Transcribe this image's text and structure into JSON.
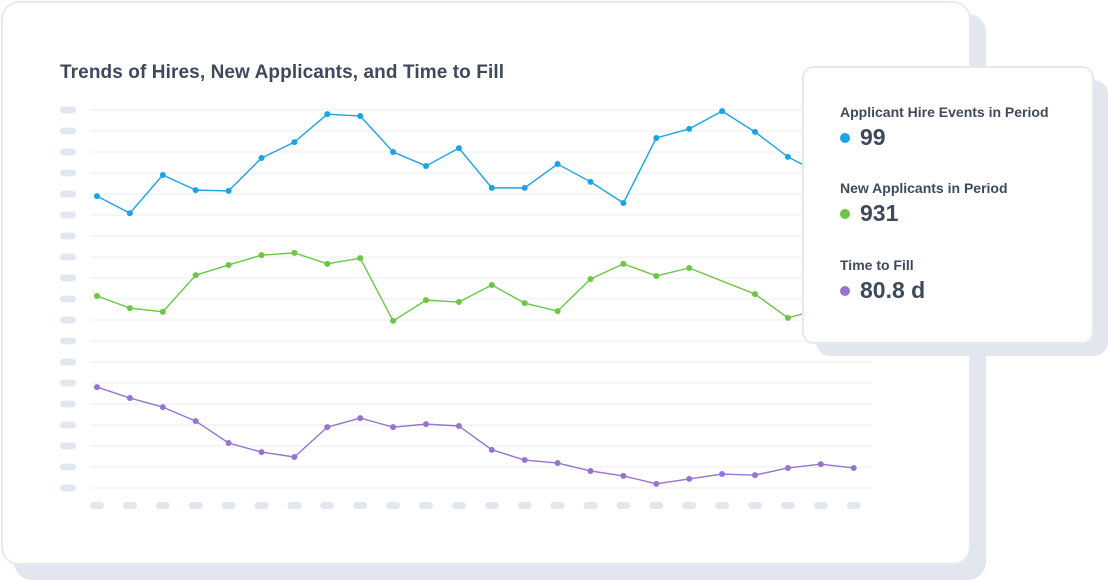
{
  "chart_title": "Trends of Hires, New Applicants, and Time to Fill",
  "tooltip": {
    "metrics": [
      {
        "label": "Applicant Hire Events in Period",
        "value": "99",
        "color": "#1aa3e6"
      },
      {
        "label": "New Applicants in Period",
        "value": "931",
        "color": "#6cc644"
      },
      {
        "label": "Time to Fill",
        "value": "80.8 d",
        "color": "#9575cd"
      }
    ]
  },
  "colors": {
    "hires": "#1aa3e6",
    "applicants": "#6cc644",
    "time_to_fill": "#9575cd",
    "grid": "#edf0f4",
    "placeholder": "#e2e7ef",
    "text": "#3e4a5c"
  },
  "chart_data": {
    "type": "line",
    "title": "Trends of Hires, New Applicants, and Time to Fill",
    "xlabel": "",
    "ylabel": "",
    "x_tick_labels_visible": false,
    "y_tick_labels_visible": false,
    "x_tick_count": 24,
    "y_gridline_count": 19,
    "grid": true,
    "legend_position": "tooltip-right",
    "note": "Axis labels are rendered as blank placeholders; values are relative plot heights (0-100, higher = up) read from pixel positions.",
    "x": [
      1,
      2,
      3,
      4,
      5,
      6,
      7,
      8,
      9,
      10,
      11,
      12,
      13,
      14,
      15,
      16,
      17,
      18,
      19,
      20,
      21,
      22,
      23,
      24
    ],
    "series": [
      {
        "name": "Applicant Hire Events in Period",
        "color": "#1aa3e6",
        "values": [
          77.2,
          72.7,
          82.8,
          78.8,
          78.6,
          87.3,
          91.5,
          98.9,
          98.4,
          88.9,
          85.2,
          89.9,
          79.4,
          79.4,
          85.7,
          81.0,
          75.4,
          92.6,
          95.0,
          99.7,
          94.2,
          87.6,
          83.1,
          null
        ]
      },
      {
        "name": "New Applicants in Period",
        "color": "#6cc644",
        "values": [
          50.8,
          47.6,
          46.6,
          56.3,
          59.0,
          61.6,
          62.2,
          59.3,
          60.8,
          44.2,
          49.7,
          49.2,
          53.7,
          48.9,
          46.8,
          55.3,
          59.3,
          56.1,
          58.2,
          null,
          51.3,
          45.0,
          47.4,
          null
        ]
      },
      {
        "name": "Time to Fill",
        "color": "#9575cd",
        "values": [
          26.7,
          23.8,
          21.4,
          17.7,
          11.9,
          9.5,
          8.2,
          16.1,
          18.5,
          16.1,
          16.9,
          16.4,
          10.1,
          7.4,
          6.6,
          4.5,
          3.2,
          1.1,
          2.4,
          3.7,
          3.4,
          5.3,
          6.3,
          5.3
        ]
      }
    ],
    "tooltip_values": {
      "Applicant Hire Events in Period": 99,
      "New Applicants in Period": 931,
      "Time to Fill": "80.8 d"
    }
  }
}
